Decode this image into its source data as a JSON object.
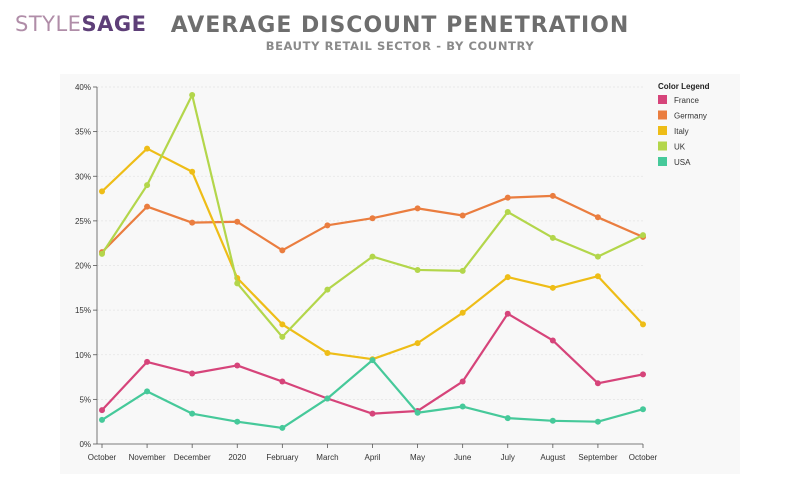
{
  "brand": {
    "style": "STYLE",
    "sage": "SAGE"
  },
  "header": {
    "title": "AVERAGE DISCOUNT PENETRATION",
    "subtitle": "BEAUTY RETAIL SECTOR - BY COUNTRY"
  },
  "chart_data": {
    "type": "line",
    "categories": [
      "October",
      "November",
      "December",
      "2020",
      "February",
      "March",
      "April",
      "May",
      "June",
      "July",
      "August",
      "September",
      "October"
    ],
    "ylim": [
      0,
      40
    ],
    "yticks": [
      0,
      5,
      10,
      15,
      20,
      25,
      30,
      35,
      40
    ],
    "ytick_labels": [
      "0%",
      "5%",
      "10%",
      "15%",
      "20%",
      "25%",
      "30%",
      "35%",
      "40%"
    ],
    "grid": "horizontal",
    "legend_title": "Color Legend",
    "legend_position": "right",
    "series": [
      {
        "name": "France",
        "color": "#d6447a",
        "values": [
          3.8,
          9.2,
          7.9,
          8.8,
          7.0,
          5.1,
          3.4,
          3.7,
          7.0,
          14.6,
          11.6,
          6.8,
          7.8
        ]
      },
      {
        "name": "Germany",
        "color": "#ea7d3f",
        "values": [
          21.5,
          26.6,
          24.8,
          24.9,
          21.7,
          24.5,
          25.3,
          26.4,
          25.6,
          27.6,
          27.8,
          25.4,
          23.2
        ]
      },
      {
        "name": "Italy",
        "color": "#eebd17",
        "values": [
          28.3,
          33.1,
          30.5,
          18.6,
          13.4,
          10.2,
          9.5,
          11.3,
          14.7,
          18.7,
          17.5,
          18.8,
          13.4
        ]
      },
      {
        "name": "UK",
        "color": "#b3d64b",
        "values": [
          21.3,
          29.0,
          39.1,
          18.0,
          12.0,
          17.3,
          21.0,
          19.5,
          19.4,
          26.0,
          23.1,
          21.0,
          23.4
        ]
      },
      {
        "name": "USA",
        "color": "#46c99a",
        "values": [
          2.7,
          5.9,
          3.4,
          2.5,
          1.8,
          5.1,
          9.4,
          3.5,
          4.2,
          2.9,
          2.6,
          2.5,
          3.9
        ]
      }
    ]
  }
}
